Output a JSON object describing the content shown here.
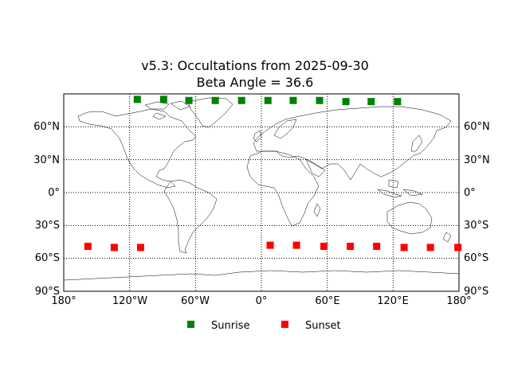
{
  "figure": {
    "title_line1": "v5.3: Occultations from 2025-09-30",
    "title_line2": "Beta Angle = 36.6"
  },
  "axes": {
    "lat_labels_left": [
      "60°N",
      "30°N",
      "0°",
      "30°S",
      "60°S",
      "90°S"
    ],
    "lat_labels_right": [
      "60°N",
      "30°N",
      "0°",
      "30°S",
      "60°S",
      "90°S"
    ],
    "lon_labels": [
      "180°",
      "120°W",
      "60°W",
      "0°",
      "60°E",
      "120°E",
      "180°"
    ]
  },
  "legend": [
    {
      "label": "Sunrise",
      "color": "#008000",
      "marker": "square"
    },
    {
      "label": "Sunset",
      "color": "#ff0000",
      "marker": "square"
    }
  ],
  "chart_data": {
    "type": "scatter",
    "projection": "equirectangular",
    "xlim": [
      -180,
      180
    ],
    "ylim": [
      -90,
      90
    ],
    "grid": true,
    "legend_position": "bottom-center",
    "series": [
      {
        "name": "Sunrise",
        "color": "#008000",
        "points": [
          {
            "lon": -113,
            "lat": 85
          },
          {
            "lon": -89,
            "lat": 85
          },
          {
            "lon": -66,
            "lat": 84
          },
          {
            "lon": -42,
            "lat": 84
          },
          {
            "lon": -18,
            "lat": 84
          },
          {
            "lon": 6,
            "lat": 84
          },
          {
            "lon": 29,
            "lat": 84
          },
          {
            "lon": 53,
            "lat": 84
          },
          {
            "lon": 77,
            "lat": 83
          },
          {
            "lon": 100,
            "lat": 83
          },
          {
            "lon": 124,
            "lat": 83
          }
        ]
      },
      {
        "name": "Sunset",
        "color": "#ff0000",
        "points": [
          {
            "lon": -158,
            "lat": -49
          },
          {
            "lon": -134,
            "lat": -50
          },
          {
            "lon": -110,
            "lat": -50
          },
          {
            "lon": 8,
            "lat": -48
          },
          {
            "lon": 32,
            "lat": -48
          },
          {
            "lon": 57,
            "lat": -49
          },
          {
            "lon": 81,
            "lat": -49
          },
          {
            "lon": 105,
            "lat": -49
          },
          {
            "lon": 130,
            "lat": -50
          },
          {
            "lon": 154,
            "lat": -50
          },
          {
            "lon": 179,
            "lat": -50
          }
        ]
      }
    ]
  }
}
